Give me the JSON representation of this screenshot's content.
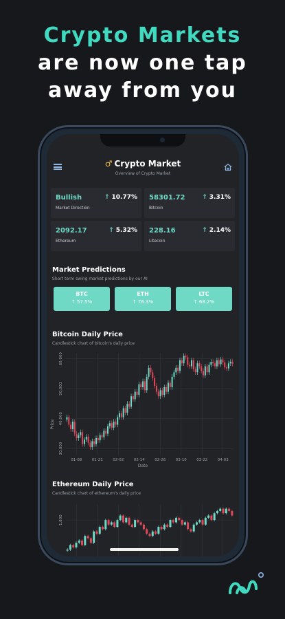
{
  "headline": {
    "line1": "Crypto Markets",
    "line2": "are now one tap",
    "line3": "away from you"
  },
  "app": {
    "title": "Crypto Market",
    "subtitle": "Overview of Crypto Market"
  },
  "icons": {
    "menu": "hamburger-icon",
    "home": "home-icon",
    "title": "mars-icon",
    "logo": "brand-logo-icon"
  },
  "colors": {
    "accent": "#6fd9c5",
    "headline": "#3fdac0",
    "up": "#6fd9c5",
    "down": "#e0495b"
  },
  "stats": [
    {
      "value": "Bullish",
      "change": "10.77%",
      "label": "Market Direction"
    },
    {
      "value": "58301.72",
      "change": "3.31%",
      "label": "Bitcoin"
    },
    {
      "value": "2092.17",
      "change": "5.32%",
      "label": "Ethereum"
    },
    {
      "value": "228.16",
      "change": "2.14%",
      "label": "Litecoin"
    }
  ],
  "predictions": {
    "title": "Market Predictions",
    "subtitle": "Short term swing market predictions by our AI",
    "items": [
      {
        "symbol": "BTC",
        "pct": "57.5%"
      },
      {
        "symbol": "ETH",
        "pct": "76.3%"
      },
      {
        "symbol": "LTC",
        "pct": "68.2%"
      }
    ]
  },
  "btc_chart": {
    "title": "Bitcoin Daily Price",
    "subtitle": "Candlestick chart of bitcoin's daily price"
  },
  "eth_chart": {
    "title": "Ethereum Daily Price",
    "subtitle": "Candlestick chart of ethereum's daily price"
  },
  "chart_data": [
    {
      "type": "candlestick",
      "title": "Bitcoin Daily Price",
      "xlabel": "Date",
      "ylabel": "Price",
      "x_ticks": [
        "01-08",
        "01-21",
        "02-02",
        "02-14",
        "02-26",
        "03-10",
        "03-22",
        "04-03"
      ],
      "y_ticks": [
        30000,
        40000,
        50000,
        60000
      ],
      "ylim": [
        28000,
        62000
      ],
      "close": [
        40500,
        38000,
        36500,
        39000,
        35000,
        33500,
        34500,
        35500,
        31500,
        33000,
        34000,
        32000,
        30500,
        32500,
        31500,
        33500,
        32800,
        34500,
        33800,
        36000,
        35000,
        37500,
        38500,
        37000,
        39000,
        38000,
        40500,
        41800,
        40500,
        43500,
        42000,
        45000,
        44000,
        47500,
        46500,
        49000,
        48000,
        51500,
        50500,
        52500,
        49500,
        54000,
        57000,
        55500,
        53500,
        51000,
        49000,
        47500,
        49500,
        48000,
        50500,
        49000,
        52000,
        50500,
        54000,
        55500,
        57000,
        56000,
        59500,
        58500,
        61000,
        60500,
        58000,
        57500,
        59500,
        56500,
        55500,
        58500,
        57500,
        56000,
        54500,
        57500,
        55500,
        58000,
        59000,
        58500,
        57500,
        59500,
        58200,
        59800,
        58800,
        57200,
        56800,
        58500,
        59000,
        58300
      ]
    },
    {
      "type": "candlestick",
      "title": "Ethereum Daily Price",
      "y_ticks": [
        1800
      ],
      "close": [
        1150,
        1250,
        1200,
        1300,
        1350,
        1250,
        1450,
        1400,
        1300,
        1550,
        1500,
        1650,
        1600,
        1800,
        1700,
        1750,
        1650,
        1800,
        1900,
        1750,
        1850,
        1700,
        1650,
        1800,
        1750,
        1700,
        1600,
        1500,
        1450,
        1550,
        1500,
        1650,
        1600,
        1700,
        1650,
        1800,
        1750,
        1850,
        1800,
        1700,
        1750,
        1600,
        1550,
        1700,
        1750,
        1800,
        1700,
        1850,
        1900,
        1800,
        1950,
        2000,
        2050,
        1950,
        2050,
        2000,
        1900
      ]
    }
  ]
}
